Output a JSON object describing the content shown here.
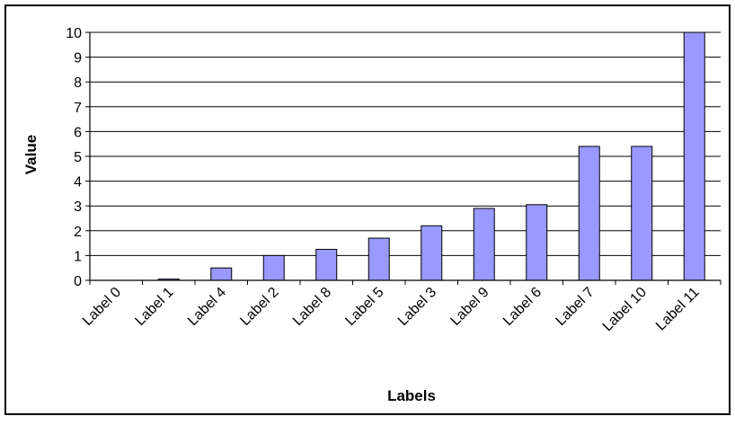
{
  "chart_data": {
    "type": "bar",
    "title": "",
    "xlabel": "Labels",
    "ylabel": "Value",
    "categories": [
      "Label 0",
      "Label 1",
      "Label 4",
      "Label 2",
      "Label 8",
      "Label 5",
      "Label 3",
      "Label 9",
      "Label 6",
      "Label 7",
      "Label 10",
      "Label 11"
    ],
    "values": [
      0,
      0.05,
      0.5,
      1.0,
      1.25,
      1.7,
      2.2,
      2.9,
      3.05,
      5.4,
      5.4,
      10.0
    ],
    "ylim": [
      0,
      10
    ],
    "yticks": [
      "0",
      "1",
      "2",
      "3",
      "4",
      "5",
      "6",
      "7",
      "8",
      "9",
      "10"
    ],
    "grid": true,
    "legend": "none",
    "colors": {
      "bar_fill": "#9999ff",
      "bar_stroke": "#000000",
      "grid": "#000000",
      "frame": "#000000",
      "background": "#ffffff"
    }
  }
}
